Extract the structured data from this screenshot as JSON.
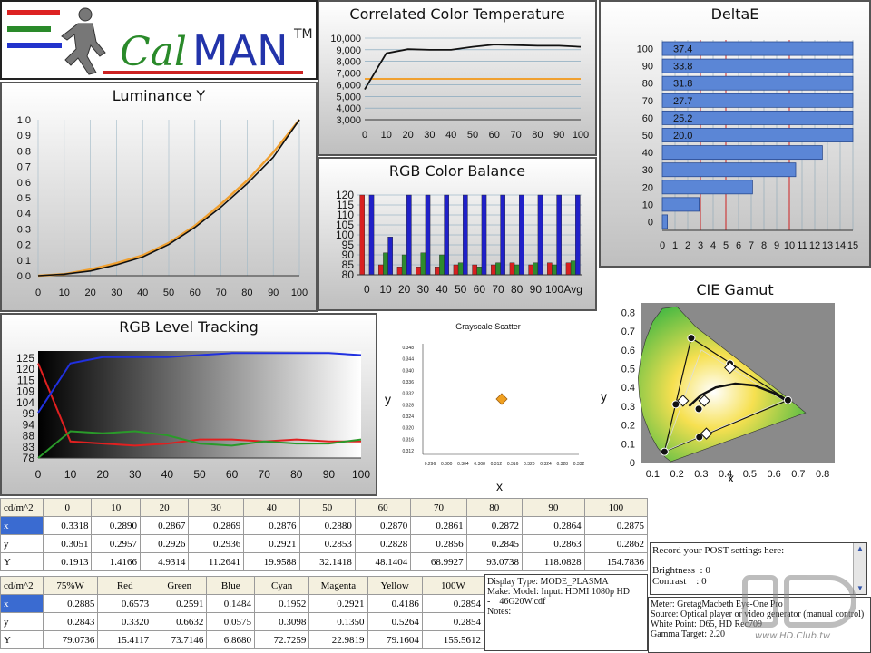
{
  "app": {
    "logo_text_a": "Cal",
    "logo_text_b": "MAN",
    "logo_tm": "TM"
  },
  "cct": {
    "title": "Correlated Color Temperature",
    "y_ticks": [
      "10,000",
      "9,000",
      "8,000",
      "7,000",
      "6,000",
      "5,000",
      "4,000",
      "3,000"
    ],
    "x_ticks": [
      "0",
      "10",
      "20",
      "30",
      "40",
      "50",
      "60",
      "70",
      "80",
      "90",
      "100"
    ],
    "target_k": 6500,
    "ylim": [
      3000,
      10000
    ],
    "x": [
      0,
      10,
      20,
      30,
      40,
      50,
      60,
      70,
      80,
      90,
      100
    ],
    "values": [
      5600,
      8700,
      9050,
      9000,
      9000,
      9250,
      9450,
      9400,
      9350,
      9350,
      9250
    ]
  },
  "deltae": {
    "title": "DeltaE",
    "y_ticks": [
      "100",
      "90",
      "80",
      "70",
      "60",
      "50",
      "40",
      "30",
      "20",
      "10",
      "0"
    ],
    "x_ticks": [
      "0",
      "1",
      "2",
      "3",
      "4",
      "5",
      "6",
      "7",
      "8",
      "9",
      "10",
      "11",
      "12",
      "13",
      "14",
      "15"
    ],
    "bars": [
      {
        "level": 100,
        "value": 37.4,
        "label": "37.4"
      },
      {
        "level": 90,
        "value": 33.8,
        "label": "33.8"
      },
      {
        "level": 80,
        "value": 31.8,
        "label": "31.8"
      },
      {
        "level": 70,
        "value": 27.7,
        "label": "27.7"
      },
      {
        "level": 60,
        "value": 25.2,
        "label": "25.2"
      },
      {
        "level": 50,
        "value": 20.0,
        "label": "20.0"
      },
      {
        "level": 40,
        "value": 12.6,
        "label": ""
      },
      {
        "level": 30,
        "value": 10.5,
        "label": ""
      },
      {
        "level": 20,
        "value": 7.1,
        "label": ""
      },
      {
        "level": 10,
        "value": 2.9,
        "label": ""
      },
      {
        "level": 0,
        "value": 0.4,
        "label": ""
      }
    ],
    "thresholds": [
      3,
      5,
      10
    ]
  },
  "luminance": {
    "title": "Luminance Y",
    "y_ticks": [
      "1.0",
      "0.9",
      "0.8",
      "0.7",
      "0.6",
      "0.5",
      "0.4",
      "0.3",
      "0.2",
      "0.1",
      "0.0"
    ],
    "x_ticks": [
      "0",
      "10",
      "20",
      "30",
      "40",
      "50",
      "60",
      "70",
      "80",
      "90",
      "100"
    ],
    "x": [
      0,
      10,
      20,
      30,
      40,
      50,
      60,
      70,
      80,
      90,
      100
    ],
    "measured": [
      0.0,
      0.01,
      0.03,
      0.07,
      0.12,
      0.2,
      0.31,
      0.44,
      0.59,
      0.76,
      1.0
    ],
    "target": [
      0.0,
      0.01,
      0.04,
      0.08,
      0.13,
      0.21,
      0.32,
      0.46,
      0.61,
      0.79,
      1.0
    ]
  },
  "rgb_balance": {
    "title": "RGB Color Balance",
    "y_ticks": [
      "120",
      "115",
      "110",
      "105",
      "100",
      "95",
      "90",
      "85",
      "80"
    ],
    "x_ticks": [
      "0",
      "10",
      "20",
      "30",
      "40",
      "50",
      "60",
      "70",
      "80",
      "90",
      "100",
      "Avg"
    ],
    "ylim": [
      80,
      120
    ],
    "categories": [
      "0",
      "10",
      "20",
      "30",
      "40",
      "50",
      "60",
      "70",
      "80",
      "90",
      "100",
      "Avg"
    ],
    "series": [
      {
        "color": "#d82020",
        "values": [
          120,
          85,
          84,
          84,
          84,
          85,
          85,
          85,
          86,
          85,
          86,
          86
        ]
      },
      {
        "color": "#2e8b2e",
        "values": [
          80,
          91,
          90,
          91,
          90,
          86,
          84,
          86,
          85,
          86,
          85,
          87
        ]
      },
      {
        "color": "#2020c8",
        "values": [
          120,
          99,
          120,
          120,
          120,
          120,
          120,
          120,
          120,
          120,
          120,
          120
        ]
      }
    ]
  },
  "rgb_tracking": {
    "title": "RGB Level Tracking",
    "y_ticks": [
      "125",
      "120",
      "115",
      "109",
      "104",
      "99",
      "94",
      "88",
      "83",
      "78"
    ],
    "x_ticks": [
      "0",
      "10",
      "20",
      "30",
      "40",
      "50",
      "60",
      "70",
      "80",
      "90",
      "100"
    ],
    "x": [
      0,
      10,
      20,
      30,
      40,
      50,
      60,
      70,
      80,
      90,
      100
    ],
    "red": [
      124,
      86,
      85,
      84,
      85,
      87,
      87,
      86,
      87,
      86,
      86
    ],
    "green": [
      78,
      91,
      90,
      91,
      89,
      85,
      84,
      86,
      85,
      85,
      87
    ],
    "blue": [
      100,
      124,
      127,
      127,
      127,
      128,
      129,
      129,
      129,
      129,
      128
    ]
  },
  "scatter": {
    "title": "Grayscale Scatter",
    "ylabel": "y",
    "xlabel": "x",
    "y_ticks": [
      "0.348",
      "0.344",
      "0.340",
      "0.336",
      "0.332",
      "0.328",
      "0.324",
      "0.320",
      "0.316",
      "0.312"
    ],
    "x_ticks": [
      "0.296",
      "0.300",
      "0.304",
      "0.308",
      "0.312",
      "0.316",
      "0.320",
      "0.324",
      "0.328",
      "0.332"
    ]
  },
  "cie": {
    "title": "CIE Gamut",
    "ylabel": "y",
    "xlabel": "x",
    "y_ticks": [
      "0.8",
      "0.7",
      "0.6",
      "0.5",
      "0.4",
      "0.3",
      "0.2",
      "0.1",
      "0"
    ],
    "x_ticks": [
      "0.1",
      "0.2",
      "0.3",
      "0.4",
      "0.5",
      "0.6",
      "0.7",
      "0.8"
    ]
  },
  "table1": {
    "header": [
      "cd/m^2",
      "0",
      "10",
      "20",
      "30",
      "40",
      "50",
      "60",
      "70",
      "80",
      "90",
      "100"
    ],
    "rows": [
      [
        "x",
        "0.3318",
        "0.2890",
        "0.2867",
        "0.2869",
        "0.2876",
        "0.2880",
        "0.2870",
        "0.2861",
        "0.2872",
        "0.2864",
        "0.2875"
      ],
      [
        "y",
        "0.3051",
        "0.2957",
        "0.2926",
        "0.2936",
        "0.2921",
        "0.2853",
        "0.2828",
        "0.2856",
        "0.2845",
        "0.2863",
        "0.2862"
      ],
      [
        "Y",
        "0.1913",
        "1.4166",
        "4.9314",
        "11.2641",
        "19.9588",
        "32.1418",
        "48.1404",
        "68.9927",
        "93.0738",
        "118.0828",
        "154.7836"
      ]
    ]
  },
  "table2": {
    "header": [
      "cd/m^2",
      "75%W",
      "Red",
      "Green",
      "Blue",
      "Cyan",
      "Magenta",
      "Yellow",
      "100W"
    ],
    "rows": [
      [
        "x",
        "0.2885",
        "0.6573",
        "0.2591",
        "0.1484",
        "0.1952",
        "0.2921",
        "0.4186",
        "0.2894"
      ],
      [
        "y",
        "0.2843",
        "0.3320",
        "0.6632",
        "0.0575",
        "0.3098",
        "0.1350",
        "0.5264",
        "0.2854"
      ],
      [
        "Y",
        "79.0736",
        "15.4117",
        "73.7146",
        "6.8680",
        "72.7259",
        "22.9819",
        "79.1604",
        "155.5612"
      ]
    ]
  },
  "display_info": {
    "line1": "Display Type: MODE_PLASMA",
    "line2": "Make: Model: Input: HDMI 1080p HD",
    "line3": "-    46G20W.cdf",
    "line4": "Notes:"
  },
  "post_box": {
    "line1": "Record your POST settings here:",
    "line2": "Brightness  : 0",
    "line3": "Contrast    : 0"
  },
  "meter_info": {
    "line1": "Meter: GretagMacbeth Eye-One Pro",
    "line2": "Source: Optical player or video generator (manual control)",
    "line3": "White Point: D65, HD Rec709",
    "line4": "Gamma Target: 2.20"
  },
  "watermark": {
    "text": "www.HD.Club.tw",
    "brand": "HD CLUB"
  }
}
